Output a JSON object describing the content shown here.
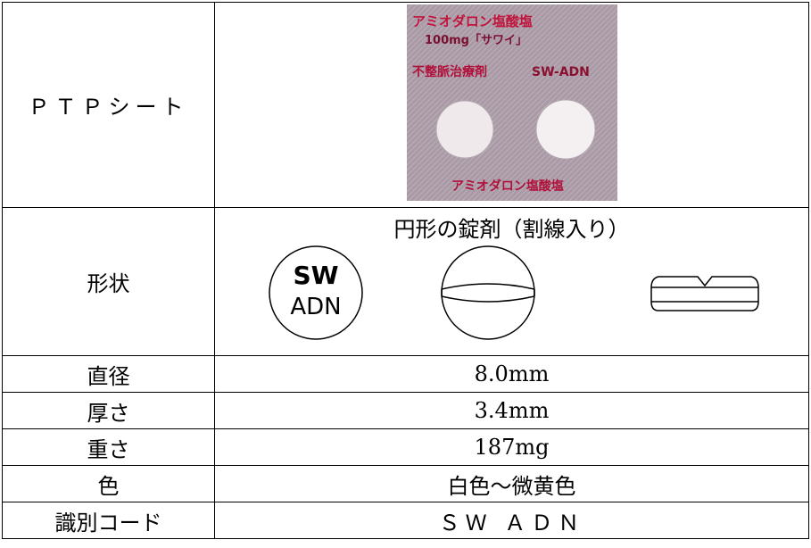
{
  "rows": [
    {
      "label": "ＰＴＰシート",
      "photo_text": [
        "アミオダロン塩酸塩",
        "100mg「サワイ」",
        "不整脈治療剤",
        "SW-ADN",
        "アミオダロン塩酸塩"
      ]
    },
    {
      "label": "形状",
      "value": "円形の錠剤（割線入り）",
      "imprint": [
        "SW",
        "ADN"
      ]
    },
    {
      "label": "直径",
      "value": "8.0mm"
    },
    {
      "label": "厚さ",
      "value": "3.4mm"
    },
    {
      "label": "重さ",
      "value": "187mg"
    },
    {
      "label": "色",
      "value": "白色～微黄色"
    },
    {
      "label": "識別コード",
      "value": "ＳＷ ＡＤＮ"
    }
  ]
}
